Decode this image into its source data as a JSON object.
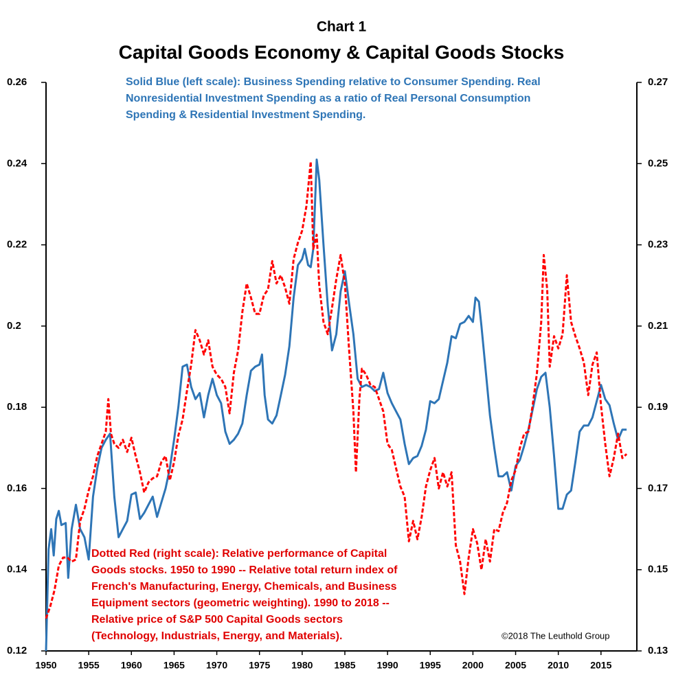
{
  "chart_data": {
    "type": "line",
    "subtitle": "Chart 1",
    "title": "Capital Goods Economy & Capital Goods Stocks",
    "annotations": {
      "blue": [
        "Solid Blue (left scale):  Business Spending relative to Consumer Spending.  Real",
        "Nonresidential Investment Spending as a ratio of Real Personal Consumption",
        "Spending & Residential Investment Spending."
      ],
      "red": [
        "Dotted Red (right scale): Relative performance of Capital",
        "Goods stocks. 1950 to 1990 -- Relative total return index of",
        "French's Manufacturing, Energy, Chemicals, and Business",
        "Equipment sectors (geometric weighting). 1990 to 2018 --",
        "Relative price of S&P 500 Capital Goods sectors",
        "(Technology, Industrials, Energy, and Materials)."
      ],
      "copyright": "©2018 The Leuthold Group"
    },
    "xlim": [
      1950,
      2019.2
    ],
    "xticks": [
      1950,
      1955,
      1960,
      1965,
      1970,
      1975,
      1980,
      1985,
      1990,
      1995,
      2000,
      2005,
      2010,
      2015
    ],
    "ylim": [
      0.12,
      0.26
    ],
    "yticks": [
      0.12,
      0.14,
      0.16,
      0.18,
      0.2,
      0.22,
      0.24,
      0.26
    ],
    "y2lim": [
      0.13,
      0.27
    ],
    "y2ticks": [
      0.13,
      0.15,
      0.17,
      0.19,
      0.21,
      0.23,
      0.25,
      0.27
    ],
    "grid": false,
    "series": [
      {
        "color": "#2e75b6",
        "axis": "y",
        "dash": false,
        "x": [
          1950,
          1950.3,
          1950.6,
          1950.9,
          1951.2,
          1951.5,
          1951.8,
          1952.3,
          1952.6,
          1953,
          1953.5,
          1954,
          1954.5,
          1955,
          1955.5,
          1956,
          1956.5,
          1957,
          1957.5,
          1958,
          1958.5,
          1959,
          1959.5,
          1960,
          1960.5,
          1961,
          1961.5,
          1962,
          1962.5,
          1963,
          1963.5,
          1964,
          1964.5,
          1965,
          1965.5,
          1966,
          1966.5,
          1967,
          1967.5,
          1968,
          1968.5,
          1969,
          1969.5,
          1970,
          1970.5,
          1971,
          1971.5,
          1972,
          1972.5,
          1973,
          1973.5,
          1974,
          1974.5,
          1975,
          1975.3,
          1975.6,
          1976,
          1976.5,
          1977,
          1977.5,
          1978,
          1978.5,
          1979,
          1979.5,
          1980,
          1980.3,
          1980.7,
          1981,
          1981.3,
          1981.7,
          1982,
          1982.5,
          1983,
          1983.5,
          1984,
          1984.5,
          1985,
          1985.5,
          1986,
          1986.5,
          1987,
          1987.5,
          1988,
          1988.5,
          1989,
          1989.5,
          1990,
          1990.5,
          1991,
          1991.5,
          1992,
          1992.5,
          1993,
          1993.5,
          1994,
          1994.5,
          1995,
          1995.5,
          1996,
          1996.5,
          1997,
          1997.5,
          1998,
          1998.5,
          1999,
          1999.5,
          2000,
          2000.3,
          2000.7,
          2001,
          2001.5,
          2002,
          2002.5,
          2003,
          2003.5,
          2004,
          2004.5,
          2005,
          2005.5,
          2006,
          2006.5,
          2007,
          2007.5,
          2008,
          2008.5,
          2009,
          2009.5,
          2010,
          2010.5,
          2011,
          2011.5,
          2012,
          2012.5,
          2013,
          2013.5,
          2014,
          2014.5,
          2015,
          2015.5,
          2016,
          2016.5,
          2017,
          2017.5,
          2018
        ],
        "values": [
          0.12,
          0.145,
          0.15,
          0.1435,
          0.1525,
          0.1545,
          0.151,
          0.1515,
          0.138,
          0.15,
          0.156,
          0.15,
          0.148,
          0.1425,
          0.158,
          0.165,
          0.17,
          0.172,
          0.1735,
          0.158,
          0.148,
          0.15,
          0.152,
          0.1585,
          0.159,
          0.1525,
          0.154,
          0.156,
          0.158,
          0.153,
          0.1565,
          0.16,
          0.165,
          0.172,
          0.18,
          0.19,
          0.1905,
          0.185,
          0.182,
          0.1835,
          0.1775,
          0.183,
          0.187,
          0.183,
          0.181,
          0.174,
          0.171,
          0.172,
          0.1735,
          0.176,
          0.183,
          0.189,
          0.19,
          0.1905,
          0.193,
          0.183,
          0.177,
          0.176,
          0.178,
          0.183,
          0.188,
          0.195,
          0.207,
          0.215,
          0.2165,
          0.219,
          0.215,
          0.2145,
          0.219,
          0.241,
          0.236,
          0.22,
          0.205,
          0.194,
          0.198,
          0.2085,
          0.2135,
          0.2055,
          0.198,
          0.187,
          0.185,
          0.1855,
          0.185,
          0.184,
          0.1845,
          0.1885,
          0.1835,
          0.181,
          0.179,
          0.177,
          0.171,
          0.166,
          0.1675,
          0.168,
          0.1705,
          0.1745,
          0.1815,
          0.181,
          0.182,
          0.1865,
          0.191,
          0.1975,
          0.197,
          0.2005,
          0.201,
          0.2025,
          0.201,
          0.207,
          0.206,
          0.2,
          0.189,
          0.178,
          0.17,
          0.163,
          0.163,
          0.164,
          0.1595,
          0.1655,
          0.167,
          0.1705,
          0.1745,
          0.1795,
          0.1845,
          0.1875,
          0.1885,
          0.18,
          0.168,
          0.155,
          0.155,
          0.1585,
          0.1595,
          0.1665,
          0.174,
          0.1755,
          0.1755,
          0.1775,
          0.1815,
          0.1855,
          0.182,
          0.1805,
          0.176,
          0.172,
          0.1745,
          0.1745
        ]
      },
      {
        "color": "#ff0000",
        "axis": "y2",
        "dash": true,
        "x": [
          1950,
          1950.5,
          1951,
          1951.5,
          1952,
          1952.5,
          1953,
          1953.5,
          1954,
          1954.5,
          1955,
          1955.5,
          1956,
          1956.5,
          1957,
          1957.3,
          1957.6,
          1958,
          1958.5,
          1959,
          1959.5,
          1960,
          1960.5,
          1961,
          1961.5,
          1962,
          1962.5,
          1963,
          1963.5,
          1964,
          1964.5,
          1965,
          1965.5,
          1966,
          1966.5,
          1967,
          1967.5,
          1968,
          1968.5,
          1969,
          1969.5,
          1970,
          1970.5,
          1971,
          1971.5,
          1972,
          1972.5,
          1973,
          1973.5,
          1974,
          1974.5,
          1975,
          1975.5,
          1976,
          1976.5,
          1977,
          1977.5,
          1978,
          1978.5,
          1979,
          1979.5,
          1980,
          1980.5,
          1981,
          1981.3,
          1981.7,
          1982,
          1982.5,
          1983,
          1983.5,
          1984,
          1984.5,
          1985,
          1985.5,
          1986,
          1986.3,
          1986.7,
          1987,
          1987.5,
          1988,
          1988.5,
          1989,
          1989.5,
          1990,
          1990.5,
          1991,
          1991.5,
          1992,
          1992.5,
          1993,
          1993.5,
          1994,
          1994.5,
          1995,
          1995.5,
          1996,
          1996.5,
          1997,
          1997.5,
          1998,
          1998.5,
          1999,
          1999.5,
          2000,
          2000.5,
          2001,
          2001.5,
          2002,
          2002.5,
          2003,
          2003.5,
          2004,
          2004.5,
          2005,
          2005.5,
          2006,
          2006.5,
          2007,
          2007.5,
          2008,
          2008.3,
          2008.7,
          2009,
          2009.5,
          2010,
          2010.5,
          2011,
          2011.5,
          2012,
          2012.5,
          2013,
          2013.5,
          2014,
          2014.5,
          2015,
          2015.5,
          2016,
          2016.5,
          2017,
          2017.5,
          2018
        ],
        "values": [
          0.138,
          0.141,
          0.145,
          0.151,
          0.153,
          0.153,
          0.152,
          0.1525,
          0.162,
          0.165,
          0.1695,
          0.173,
          0.178,
          0.181,
          0.184,
          0.192,
          0.1835,
          0.181,
          0.18,
          0.182,
          0.179,
          0.1825,
          0.178,
          0.174,
          0.169,
          0.1715,
          0.1725,
          0.173,
          0.1765,
          0.178,
          0.172,
          0.1765,
          0.183,
          0.187,
          0.194,
          0.2005,
          0.209,
          0.2065,
          0.203,
          0.2065,
          0.2,
          0.198,
          0.197,
          0.195,
          0.1885,
          0.1985,
          0.204,
          0.2135,
          0.2205,
          0.217,
          0.213,
          0.213,
          0.2175,
          0.219,
          0.226,
          0.2205,
          0.2225,
          0.2195,
          0.2155,
          0.2265,
          0.2305,
          0.2335,
          0.2395,
          0.2505,
          0.229,
          0.2325,
          0.22,
          0.211,
          0.208,
          0.2145,
          0.2215,
          0.2275,
          0.2205,
          0.204,
          0.189,
          0.174,
          0.192,
          0.1995,
          0.198,
          0.1955,
          0.195,
          0.192,
          0.189,
          0.181,
          0.1795,
          0.175,
          0.1705,
          0.168,
          0.157,
          0.162,
          0.1575,
          0.163,
          0.1705,
          0.1745,
          0.1775,
          0.17,
          0.174,
          0.1705,
          0.174,
          0.156,
          0.152,
          0.144,
          0.153,
          0.16,
          0.1565,
          0.15,
          0.1575,
          0.152,
          0.16,
          0.1595,
          0.164,
          0.1665,
          0.172,
          0.1745,
          0.18,
          0.1835,
          0.184,
          0.1905,
          0.1985,
          0.211,
          0.2275,
          0.219,
          0.2,
          0.2075,
          0.2045,
          0.208,
          0.2225,
          0.211,
          0.2075,
          0.2045,
          0.201,
          0.193,
          0.2005,
          0.2035,
          0.1905,
          0.181,
          0.173,
          0.1775,
          0.1835,
          0.1775,
          0.1785
        ]
      }
    ]
  }
}
